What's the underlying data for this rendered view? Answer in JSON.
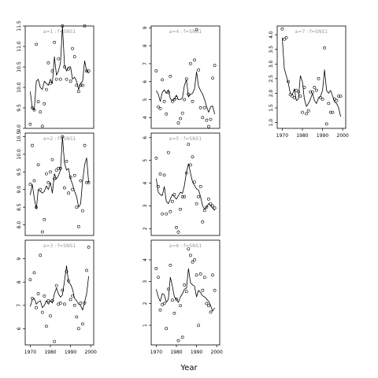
{
  "figure": {
    "xlabel": "Year"
  },
  "chart_data": [
    {
      "type": "scatter",
      "title": "a=1 : f=SNS1",
      "xlim": [
        1967.5,
        2001.5
      ],
      "ylim": [
        9.0,
        11.5
      ],
      "yticks": [
        9.0,
        9.5,
        10.0,
        10.5,
        11.0,
        11.5
      ],
      "ytick_labels": [
        "9.0",
        "9.5",
        "10.0",
        "10.5",
        "11.0",
        "11.5"
      ],
      "x": [
        1970,
        1971,
        1972,
        1973,
        1974,
        1975,
        1976,
        1977,
        1978,
        1979,
        1980,
        1981,
        1982,
        1983,
        1984,
        1985,
        1986,
        1987,
        1988,
        1989,
        1990,
        1991,
        1992,
        1993,
        1994,
        1995,
        1996,
        1997,
        1998,
        1999
      ],
      "points": [
        9.1,
        9.5,
        9.45,
        11.05,
        9.65,
        9.4,
        9.05,
        9.6,
        9.95,
        10.6,
        10.1,
        10.4,
        11.1,
        10.2,
        10.7,
        10.2,
        11.5,
        10.5,
        10.2,
        10.45,
        10.15,
        10.95,
        10.75,
        10.05,
        9.9,
        10.05,
        10.05,
        11.5,
        10.4,
        10.4
      ],
      "fit": [
        9.9,
        9.5,
        9.45,
        10.15,
        10.2,
        10.0,
        9.95,
        10.15,
        10.1,
        10.05,
        10.2,
        10.1,
        10.75,
        10.3,
        10.4,
        10.6,
        11.5,
        10.55,
        10.4,
        10.5,
        10.5,
        10.2,
        10.25,
        10.15,
        9.95,
        10.1,
        10.15,
        10.65,
        10.4,
        10.35
      ]
    },
    {
      "type": "scatter",
      "title": "a=2 : f=SNS1",
      "xlim": [
        1967.5,
        2001.5
      ],
      "ylim": [
        7.7,
        10.6
      ],
      "yticks": [
        8.0,
        8.5,
        9.0,
        9.5,
        10.0,
        10.5
      ],
      "ytick_labels": [
        "8.0",
        "8.5",
        "9.0",
        "9.5",
        "10.0",
        "10.5"
      ],
      "x": [
        1970,
        1971,
        1972,
        1973,
        1974,
        1975,
        1976,
        1977,
        1978,
        1979,
        1980,
        1981,
        1982,
        1983,
        1984,
        1985,
        1986,
        1987,
        1988,
        1989,
        1990,
        1991,
        1992,
        1993,
        1994,
        1995,
        1996,
        1997,
        1998,
        1999
      ],
      "points": [
        9.15,
        10.25,
        9.25,
        8.5,
        9.7,
        9.0,
        7.8,
        8.15,
        9.45,
        9.2,
        9.5,
        9.85,
        9.3,
        9.55,
        9.6,
        9.6,
        10.5,
        9.05,
        9.8,
        8.9,
        9.35,
        9.0,
        9.4,
        8.5,
        7.95,
        9.25,
        8.4,
        10.25,
        9.2,
        9.2
      ],
      "fit": [
        8.85,
        9.15,
        8.75,
        8.45,
        9.0,
        8.95,
        8.9,
        8.95,
        9.1,
        9.0,
        9.2,
        8.9,
        9.45,
        9.3,
        9.4,
        9.55,
        10.5,
        9.75,
        9.55,
        9.6,
        9.3,
        9.15,
        8.95,
        8.8,
        8.5,
        8.6,
        9.25,
        9.7,
        9.9,
        9.2
      ]
    },
    {
      "type": "scatter",
      "title": "a=3 : f=SNS1",
      "xlim": [
        1967.5,
        2001.5
      ],
      "ylim": [
        5.3,
        9.8
      ],
      "yticks": [
        6,
        7,
        8,
        9
      ],
      "ytick_labels": [
        "6",
        "7",
        "8",
        "9"
      ],
      "x": [
        1970,
        1971,
        1972,
        1973,
        1974,
        1975,
        1976,
        1977,
        1978,
        1979,
        1980,
        1981,
        1982,
        1983,
        1984,
        1985,
        1986,
        1987,
        1988,
        1989,
        1990,
        1991,
        1992,
        1993,
        1994,
        1995,
        1996,
        1997,
        1998,
        1999
      ],
      "points": [
        8.1,
        7.3,
        8.4,
        6.9,
        7.5,
        9.15,
        6.7,
        7.4,
        6.1,
        7.2,
        6.55,
        7.2,
        5.45,
        7.85,
        7.05,
        7.1,
        7.65,
        7.05,
        8.45,
        8.05,
        7.25,
        7.4,
        7.0,
        6.5,
        6.0,
        7.1,
        6.2,
        7.1,
        8.5,
        9.5
      ],
      "fit": [
        6.95,
        7.25,
        7.3,
        7.05,
        7.15,
        7.2,
        6.9,
        7.0,
        7.2,
        7.05,
        7.2,
        7.1,
        7.5,
        7.75,
        7.5,
        7.35,
        7.45,
        8.05,
        8.7,
        8.0,
        7.9,
        7.7,
        7.3,
        7.2,
        7.05,
        7.0,
        6.8,
        7.15,
        7.5,
        8.25
      ]
    },
    {
      "type": "scatter",
      "title": "a=4 : f=SNS1",
      "xlim": [
        1967.5,
        2001.5
      ],
      "ylim": [
        3.4,
        9.1
      ],
      "yticks": [
        4,
        5,
        6,
        7,
        8,
        9
      ],
      "ytick_labels": [
        "4",
        "5",
        "6",
        "7",
        "8",
        "9"
      ],
      "x": [
        1970,
        1971,
        1972,
        1973,
        1974,
        1975,
        1976,
        1977,
        1978,
        1979,
        1980,
        1981,
        1982,
        1983,
        1984,
        1985,
        1986,
        1987,
        1988,
        1989,
        1990,
        1991,
        1992,
        1993,
        1994,
        1995,
        1996,
        1997,
        1998,
        1999
      ],
      "points": [
        6.6,
        4.6,
        4.5,
        6.1,
        4.9,
        4.2,
        5.4,
        6.3,
        4.9,
        5.0,
        5.1,
        3.7,
        3.95,
        4.25,
        5.0,
        6.15,
        5.3,
        7.0,
        4.9,
        7.2,
        8.9,
        6.65,
        4.55,
        4.0,
        4.55,
        3.85,
        3.5,
        3.9,
        6.2,
        6.9
      ],
      "fit": [
        5.5,
        5.3,
        4.9,
        5.4,
        5.55,
        5.35,
        5.55,
        5.05,
        4.95,
        5.05,
        5.25,
        5.0,
        5.0,
        5.1,
        5.8,
        6.1,
        5.15,
        5.3,
        5.35,
        5.6,
        6.55,
        5.75,
        5.5,
        5.3,
        5.0,
        4.6,
        4.3,
        4.6,
        4.65,
        4.2
      ]
    },
    {
      "type": "scatter",
      "title": "a=5 : f=SNS1",
      "xlim": [
        1967.5,
        2001.5
      ],
      "ylim": [
        1.7,
        6.2
      ],
      "yticks": [
        2,
        3,
        4,
        5,
        6
      ],
      "ytick_labels": [
        "2",
        "3",
        "4",
        "5",
        "6"
      ],
      "x": [
        1970,
        1971,
        1972,
        1973,
        1974,
        1975,
        1976,
        1977,
        1978,
        1979,
        1980,
        1981,
        1982,
        1983,
        1984,
        1985,
        1986,
        1987,
        1988,
        1989,
        1990,
        1991,
        1992,
        1993,
        1994,
        1995,
        1996,
        1997,
        1998,
        1999
      ],
      "points": [
        5.1,
        3.85,
        4.4,
        2.65,
        4.35,
        2.65,
        5.35,
        2.75,
        3.2,
        3.5,
        2.05,
        1.85,
        2.85,
        3.4,
        3.4,
        4.45,
        5.7,
        4.8,
        5.15,
        4.05,
        3.1,
        3.4,
        3.85,
        2.3,
        2.8,
        2.95,
        3.3,
        3.1,
        3.0,
        2.9
      ],
      "fit": [
        4.2,
        3.6,
        3.5,
        3.45,
        3.85,
        3.2,
        3.1,
        3.3,
        3.5,
        3.4,
        3.3,
        3.45,
        3.6,
        3.55,
        3.9,
        4.5,
        4.85,
        4.45,
        4.05,
        3.9,
        3.75,
        3.7,
        3.4,
        3.0,
        2.85,
        2.95,
        3.1,
        3.0,
        2.9,
        2.8
      ]
    },
    {
      "type": "scatter",
      "title": "a=6 : f=SNS1",
      "xlim": [
        1967.5,
        2001.5
      ],
      "ylim": [
        0.1,
        4.9
      ],
      "yticks": [
        1,
        2,
        3,
        4
      ],
      "ytick_labels": [
        "1",
        "2",
        "3",
        "4"
      ],
      "x": [
        1970,
        1971,
        1972,
        1973,
        1974,
        1975,
        1976,
        1977,
        1978,
        1979,
        1980,
        1981,
        1982,
        1983,
        1984,
        1985,
        1986,
        1987,
        1988,
        1989,
        1990,
        1991,
        1992,
        1993,
        1994,
        1995,
        1996,
        1997,
        1998,
        1999
      ],
      "points": [
        3.6,
        3.2,
        1.7,
        1.95,
        2.0,
        0.85,
        2.65,
        3.75,
        2.15,
        1.55,
        2.2,
        0.3,
        1.9,
        0.45,
        2.85,
        2.55,
        4.5,
        4.2,
        3.9,
        4.0,
        3.3,
        1.0,
        3.35,
        2.6,
        3.2,
        2.0,
        1.9,
        1.6,
        3.3,
        2.6
      ],
      "fit": [
        2.65,
        2.3,
        2.1,
        2.45,
        2.4,
        2.05,
        2.2,
        3.2,
        2.8,
        2.3,
        2.2,
        2.05,
        2.3,
        2.45,
        2.65,
        2.7,
        3.6,
        2.95,
        2.85,
        2.8,
        2.3,
        2.6,
        2.5,
        2.35,
        2.3,
        2.2,
        2.1,
        1.9,
        1.65,
        1.8
      ]
    },
    {
      "type": "scatter",
      "title": "a=7 : f=SNS1",
      "xlim": [
        1967.5,
        2001.5
      ],
      "ylim": [
        0.8,
        4.3
      ],
      "yticks": [
        1.0,
        1.5,
        2.0,
        2.5,
        3.0,
        3.5,
        4.0
      ],
      "ytick_labels": [
        "1.0",
        "1.5",
        "2.0",
        "2.5",
        "3.0",
        "3.5",
        "4.0"
      ],
      "x": [
        1970,
        1971,
        1972,
        1973,
        1974,
        1975,
        1976,
        1977,
        1978,
        1979,
        1980,
        1981,
        1982,
        1983,
        1984,
        1985,
        1986,
        1987,
        1988,
        1989,
        1990,
        1991,
        1992,
        1993,
        1994,
        1995,
        1996,
        1997,
        1998,
        1999
      ],
      "points": [
        4.2,
        3.85,
        3.9,
        2.4,
        1.95,
        1.9,
        1.85,
        2.1,
        2.05,
        1.9,
        1.35,
        2.2,
        1.3,
        1.4,
        2.05,
        2.05,
        2.2,
        2.1,
        2.5,
        1.85,
        1.8,
        3.55,
        0.95,
        1.65,
        1.35,
        1.35,
        1.8,
        1.75,
        1.9,
        1.9
      ],
      "fit": [
        3.9,
        2.85,
        2.6,
        2.35,
        2.0,
        1.95,
        2.15,
        1.75,
        1.8,
        2.6,
        2.4,
        1.8,
        1.55,
        1.65,
        1.8,
        2.0,
        1.75,
        1.65,
        1.85,
        1.9,
        2.1,
        2.8,
        2.1,
        2.0,
        2.1,
        1.9,
        1.7,
        1.65,
        1.5,
        1.2
      ]
    }
  ],
  "axes": {
    "xticks": [
      1970,
      1980,
      1990,
      2000
    ],
    "xtick_labels": [
      "1970",
      "1980",
      "1990",
      "2000"
    ]
  }
}
